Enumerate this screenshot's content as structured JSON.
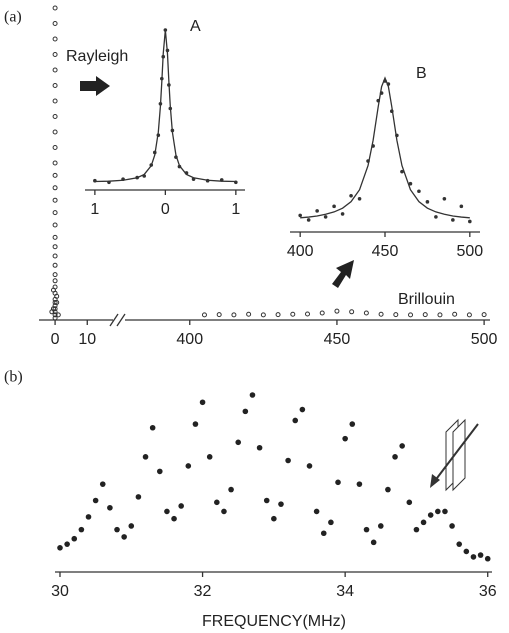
{
  "chart_data": [
    {
      "type": "scatter",
      "label": "(a)",
      "annotation": "Brillouin",
      "xsegments": [
        [
          -5,
          18
        ],
        [
          378,
          502
        ]
      ],
      "xticks": [
        0,
        10,
        400,
        450,
        500
      ],
      "color": "#333",
      "series": [
        {
          "x": [
            0,
            0,
            0,
            0,
            0,
            0,
            0,
            0,
            0,
            0,
            0,
            0,
            0,
            0,
            0,
            0,
            0,
            0,
            0,
            0,
            0,
            0,
            0,
            0,
            0,
            0,
            0,
            0,
            0,
            0,
            0,
            -0.5,
            0.5,
            -1,
            1,
            0.5,
            -0.5
          ],
          "values": [
            1.0,
            0.95,
            0.9,
            0.85,
            0.8,
            0.75,
            0.7,
            0.65,
            0.6,
            0.55,
            0.5,
            0.46,
            0.42,
            0.38,
            0.34,
            0.3,
            0.26,
            0.23,
            0.2,
            0.17,
            0.14,
            0.12,
            0.1,
            0.08,
            0.06,
            0.05,
            0.04,
            0.03,
            0.02,
            0.01,
            0,
            0.03,
            0.05,
            0.02,
            0.01,
            0.07,
            0.09
          ]
        },
        {
          "x": [
            405,
            410,
            415,
            420,
            425,
            430,
            435,
            440,
            445,
            450,
            455,
            460,
            465,
            470,
            475,
            480,
            485,
            490,
            495,
            500
          ],
          "values": [
            0.01,
            0.011,
            0.01,
            0.012,
            0.01,
            0.011,
            0.012,
            0.013,
            0.016,
            0.022,
            0.02,
            0.016,
            0.012,
            0.011,
            0.01,
            0.011,
            0.01,
            0.012,
            0.01,
            0.011
          ]
        }
      ]
    },
    {
      "type": "line",
      "title": "A",
      "annotation": "Rayleigh",
      "color": "#333",
      "xlim": [
        -1.14,
        1.13
      ],
      "xticks": [
        {
          "value": -1,
          "label": "1"
        },
        0,
        1
      ],
      "x": [
        -1,
        -0.8,
        -0.6,
        -0.4,
        -0.3,
        -0.2,
        -0.15,
        -0.1,
        -0.07,
        -0.05,
        -0.03,
        0,
        0.03,
        0.05,
        0.07,
        0.1,
        0.15,
        0.2,
        0.3,
        0.4,
        0.6,
        0.8,
        1
      ],
      "series": [
        {
          "style": "points",
          "values": [
            0.04,
            0.03,
            0.05,
            0.06,
            0.07,
            0.14,
            0.22,
            0.33,
            0.53,
            0.69,
            0.83,
            1,
            0.87,
            0.65,
            0.5,
            0.36,
            0.19,
            0.13,
            0.09,
            0.05,
            0.04,
            0.045,
            0.03
          ]
        },
        {
          "style": "line",
          "values": [
            0.035,
            0.037,
            0.043,
            0.059,
            0.08,
            0.136,
            0.204,
            0.349,
            0.515,
            0.672,
            0.85,
            1,
            0.85,
            0.672,
            0.515,
            0.349,
            0.204,
            0.136,
            0.08,
            0.059,
            0.043,
            0.037,
            0.035
          ]
        }
      ]
    },
    {
      "type": "line",
      "title": "B",
      "color": "#333",
      "xlim": [
        394,
        506
      ],
      "xticks": [
        400,
        450,
        500
      ],
      "x": [
        400,
        405,
        410,
        415,
        420,
        425,
        430,
        435,
        440,
        443,
        446,
        448,
        450,
        452,
        454,
        457,
        460,
        465,
        470,
        475,
        480,
        485,
        490,
        495,
        500
      ],
      "series": [
        {
          "style": "points",
          "values": [
            0.09,
            0.06,
            0.12,
            0.08,
            0.15,
            0.1,
            0.22,
            0.2,
            0.45,
            0.55,
            0.85,
            0.9,
            0.98,
            0.96,
            0.78,
            0.62,
            0.38,
            0.3,
            0.25,
            0.18,
            0.08,
            0.2,
            0.06,
            0.15,
            0.05
          ]
        },
        {
          "style": "line",
          "values": [
            0.074,
            0.079,
            0.086,
            0.098,
            0.113,
            0.138,
            0.181,
            0.26,
            0.42,
            0.588,
            0.81,
            0.943,
            1,
            0.943,
            0.81,
            0.588,
            0.42,
            0.26,
            0.181,
            0.138,
            0.113,
            0.098,
            0.086,
            0.079,
            0.074
          ]
        }
      ]
    },
    {
      "type": "scatter",
      "label": "(b)",
      "xlabel": "FREQUENCY(MHz)",
      "color": "#222",
      "xlim": [
        29.93,
        36.06
      ],
      "xticks": [
        30,
        32,
        34,
        36
      ],
      "x": [
        30,
        30.1,
        30.2,
        30.3,
        30.4,
        30.5,
        30.6,
        30.7,
        30.8,
        30.9,
        31,
        31.1,
        31.2,
        31.3,
        31.4,
        31.5,
        31.6,
        31.7,
        31.8,
        31.9,
        32,
        32.1,
        32.2,
        32.3,
        32.4,
        32.5,
        32.6,
        32.7,
        32.8,
        32.9,
        33,
        33.1,
        33.2,
        33.3,
        33.4,
        33.5,
        33.6,
        33.7,
        33.8,
        33.9,
        34,
        34.1,
        34.2,
        34.3,
        34.4,
        34.5,
        34.6,
        34.7,
        34.8,
        34.9,
        35,
        35.1,
        35.2,
        35.3,
        35.4,
        35.5,
        35.6,
        35.7,
        35.8,
        35.9,
        36
      ],
      "values": [
        0.1,
        0.12,
        0.15,
        0.2,
        0.27,
        0.36,
        0.45,
        0.32,
        0.2,
        0.16,
        0.22,
        0.38,
        0.6,
        0.76,
        0.52,
        0.3,
        0.26,
        0.33,
        0.55,
        0.78,
        0.9,
        0.6,
        0.35,
        0.3,
        0.42,
        0.68,
        0.85,
        0.94,
        0.65,
        0.36,
        0.26,
        0.34,
        0.58,
        0.8,
        0.86,
        0.55,
        0.3,
        0.18,
        0.24,
        0.46,
        0.7,
        0.78,
        0.45,
        0.2,
        0.13,
        0.22,
        0.42,
        0.6,
        0.66,
        0.35,
        0.2,
        0.24,
        0.28,
        0.3,
        0.3,
        0.22,
        0.12,
        0.08,
        0.05,
        0.06,
        0.04
      ]
    }
  ]
}
